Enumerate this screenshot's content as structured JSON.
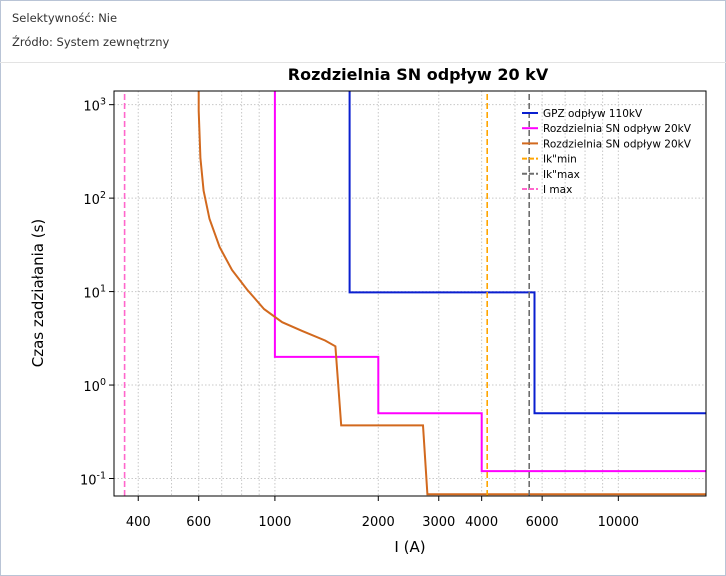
{
  "info": {
    "selectivity": "Selektywność: Nie",
    "source": "Źródło: System zewnętrzny"
  },
  "chart_data": {
    "type": "line",
    "title": "Rozdzielnia SN odpływ 20 kV",
    "xlabel": "I (A)",
    "ylabel": "Czas zadziałania (s)",
    "xscale": "log",
    "yscale": "log",
    "xlim": [
      340,
      18000
    ],
    "ylim": [
      0.065,
      1400
    ],
    "grid": true,
    "legend_position": "top-right",
    "x_ticks": [
      {
        "value": 400,
        "label": "400"
      },
      {
        "value": 600,
        "label": "600"
      },
      {
        "value": 1000,
        "label": "1000"
      },
      {
        "value": 2000,
        "label": "2000"
      },
      {
        "value": 3000,
        "label": "3000"
      },
      {
        "value": 4000,
        "label": "4000"
      },
      {
        "value": 6000,
        "label": "6000"
      },
      {
        "value": 10000,
        "label": "10000"
      }
    ],
    "y_ticks": [
      {
        "value": 0.1,
        "base": "10",
        "exp": "-1"
      },
      {
        "value": 1,
        "base": "10",
        "exp": "0"
      },
      {
        "value": 10,
        "base": "10",
        "exp": "1"
      },
      {
        "value": 100,
        "base": "10",
        "exp": "2"
      },
      {
        "value": 1000,
        "base": "10",
        "exp": "3"
      }
    ],
    "series": [
      {
        "name": "GPZ odpływ 110kV",
        "color": "#0a1fd0",
        "style": "solid",
        "points": [
          [
            1650,
            1400
          ],
          [
            1650,
            9.8
          ],
          [
            5700,
            9.8
          ],
          [
            5700,
            0.5
          ],
          [
            18000,
            0.5
          ]
        ]
      },
      {
        "name": "Rozdzielnia SN odpływ 20kV",
        "color": "#ff00ff",
        "style": "solid",
        "points": [
          [
            1000,
            1400
          ],
          [
            1000,
            2.0
          ],
          [
            2000,
            2.0
          ],
          [
            2000,
            0.5
          ],
          [
            4000,
            0.5
          ],
          [
            4000,
            0.12
          ],
          [
            18000,
            0.12
          ]
        ]
      },
      {
        "name": "Rozdzielnia SN odpływ 20kV",
        "color": "#d2691e",
        "style": "solid",
        "points": [
          [
            600,
            1400
          ],
          [
            600,
            860
          ],
          [
            607,
            270
          ],
          [
            620,
            120
          ],
          [
            645,
            60
          ],
          [
            690,
            30
          ],
          [
            750,
            17
          ],
          [
            830,
            10.5
          ],
          [
            930,
            6.5
          ],
          [
            1050,
            4.7
          ],
          [
            1200,
            3.8
          ],
          [
            1400,
            3.0
          ],
          [
            1500,
            2.6
          ],
          [
            1560,
            0.37
          ],
          [
            2700,
            0.37
          ],
          [
            2780,
            0.068
          ],
          [
            18000,
            0.068
          ]
        ]
      },
      {
        "name": "Ik\"min",
        "color": "#ffa500",
        "style": "dashed",
        "points": [
          [
            4150,
            0.065
          ],
          [
            4150,
            1400
          ]
        ]
      },
      {
        "name": "Ik\"max",
        "color": "#6e6e6e",
        "style": "dashed",
        "points": [
          [
            5500,
            0.065
          ],
          [
            5500,
            1400
          ]
        ]
      },
      {
        "name": "I max",
        "color": "#ff66cc",
        "style": "dashed",
        "points": [
          [
            365,
            0.065
          ],
          [
            365,
            1400
          ]
        ]
      }
    ]
  }
}
